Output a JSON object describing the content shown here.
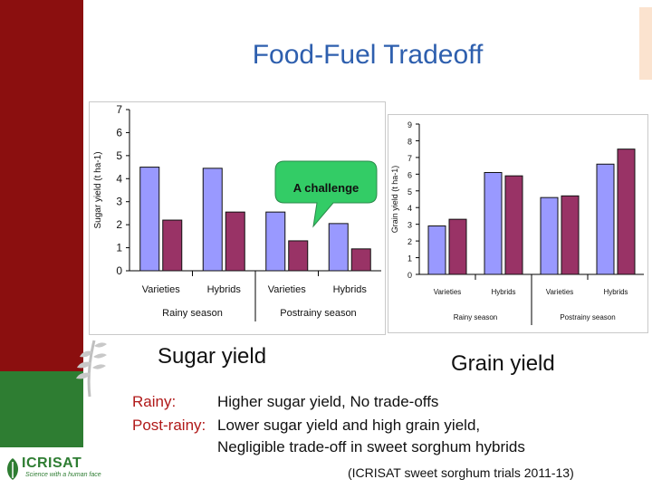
{
  "title": "Food-Fuel Tradeoff",
  "colors": {
    "rainy_bar": "#9999ff",
    "postrainy_bar": "#993366",
    "sidebar_red": "#8b0f0f",
    "sidebar_green": "#2e7d32",
    "title_blue": "#2e5fae",
    "callout": "#33cc66"
  },
  "callout_text": "A challenge",
  "captions": {
    "left": "Sugar yield",
    "right": "Grain yield"
  },
  "notes": {
    "l1_label": "Rainy:",
    "l1_text": "Higher sugar yield, No trade-offs",
    "l2_label": "Post-rainy:",
    "l2_text": "Lower sugar yield and high grain yield,",
    "l3_text": "Negligible trade-off in sweet sorghum hybrids"
  },
  "source": "(ICRISAT sweet sorghum trials 2011-13)",
  "logo": {
    "name": "ICRISAT",
    "tagline": "Science with a human face"
  },
  "chart_data": [
    {
      "type": "bar",
      "ylabel": "Sugar yield (t ha-1)",
      "ylim": [
        0,
        7
      ],
      "yticks": [
        0,
        1,
        2,
        3,
        4,
        5,
        6,
        7
      ],
      "groups": [
        {
          "label": "Varieties",
          "season": "Rainy season",
          "values": [
            4.5,
            2.2
          ]
        },
        {
          "label": "Hybrids",
          "season": "Rainy season",
          "values": [
            4.45,
            2.55
          ]
        },
        {
          "label": "Varieties",
          "season": "Postrainy season",
          "values": [
            2.55,
            1.3
          ]
        },
        {
          "label": "Hybrids",
          "season": "Postrainy season",
          "values": [
            2.05,
            0.95
          ]
        }
      ],
      "seasons": [
        "Rainy season",
        "Postrainy season"
      ]
    },
    {
      "type": "bar",
      "ylabel": "Grain yield (t ha-1)",
      "ylim": [
        0,
        9
      ],
      "yticks": [
        0,
        1,
        2,
        3,
        4,
        5,
        6,
        7,
        8,
        9
      ],
      "groups": [
        {
          "label": "Varieties",
          "season": "Rainy season",
          "values": [
            2.9,
            3.3
          ]
        },
        {
          "label": "Hybrids",
          "season": "Rainy season",
          "values": [
            6.1,
            5.9
          ]
        },
        {
          "label": "Varieties",
          "season": "Postrainy season",
          "values": [
            4.6,
            4.7
          ]
        },
        {
          "label": "Hybrids",
          "season": "Postrainy season",
          "values": [
            6.6,
            7.5
          ]
        }
      ],
      "seasons": [
        "Rainy season",
        "Postrainy season"
      ]
    }
  ]
}
